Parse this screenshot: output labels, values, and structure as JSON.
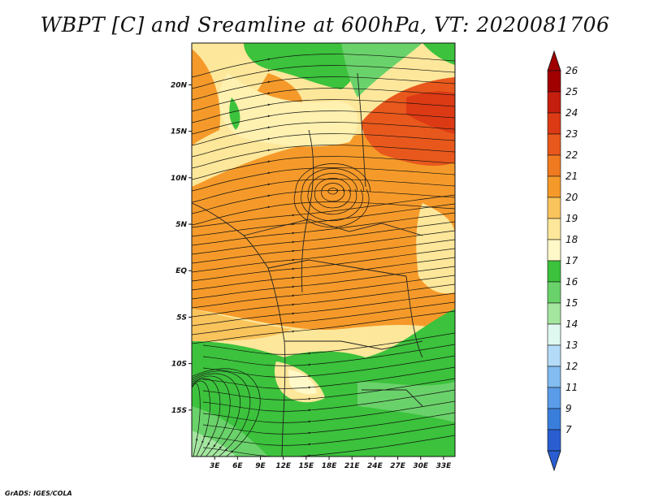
{
  "title": "WBPT [C] and Sreamline at 600hPa, VT: 2020081706",
  "credit": "GrADS: IGES/COLA",
  "lat_labels": [
    {
      "text": "20N",
      "lat": 20
    },
    {
      "text": "15N",
      "lat": 15
    },
    {
      "text": "10N",
      "lat": 10
    },
    {
      "text": "5N",
      "lat": 5
    },
    {
      "text": "EQ",
      "lat": 0
    },
    {
      "text": "5S",
      "lat": -5
    },
    {
      "text": "10S",
      "lat": -10
    },
    {
      "text": "15S",
      "lat": -15
    }
  ],
  "lon_labels": [
    {
      "text": "3E",
      "lon": 3
    },
    {
      "text": "6E",
      "lon": 6
    },
    {
      "text": "9E",
      "lon": 9
    },
    {
      "text": "12E",
      "lon": 12
    },
    {
      "text": "15E",
      "lon": 15
    },
    {
      "text": "18E",
      "lon": 18
    },
    {
      "text": "21E",
      "lon": 21
    },
    {
      "text": "24E",
      "lon": 24
    },
    {
      "text": "27E",
      "lon": 27
    },
    {
      "text": "30E",
      "lon": 30
    },
    {
      "text": "33E",
      "lon": 33
    }
  ],
  "map_extent": {
    "lon_min": 0,
    "lon_max": 34.5,
    "lat_min": -20,
    "lat_max": 24.5
  },
  "colorbar": {
    "levels": [
      "26",
      "25",
      "24",
      "23",
      "22",
      "21",
      "20",
      "19",
      "18",
      "17",
      "16",
      "15",
      "14",
      "13",
      "12",
      "11",
      "9",
      "7"
    ],
    "colors": [
      "#a00000",
      "#c41e0e",
      "#dc3a14",
      "#e8581c",
      "#f07a20",
      "#f59a2a",
      "#fac45c",
      "#fde79a",
      "#fff8c8",
      "#3cc23c",
      "#6ad26a",
      "#a4e6a0",
      "#dff8f0",
      "#b4dcf8",
      "#82bcf0",
      "#5a9ce8",
      "#3a7edc",
      "#2a5ed0"
    ],
    "top_arrow_color": "#a00000",
    "bottom_arrow_color": "#2a5ed0"
  }
}
